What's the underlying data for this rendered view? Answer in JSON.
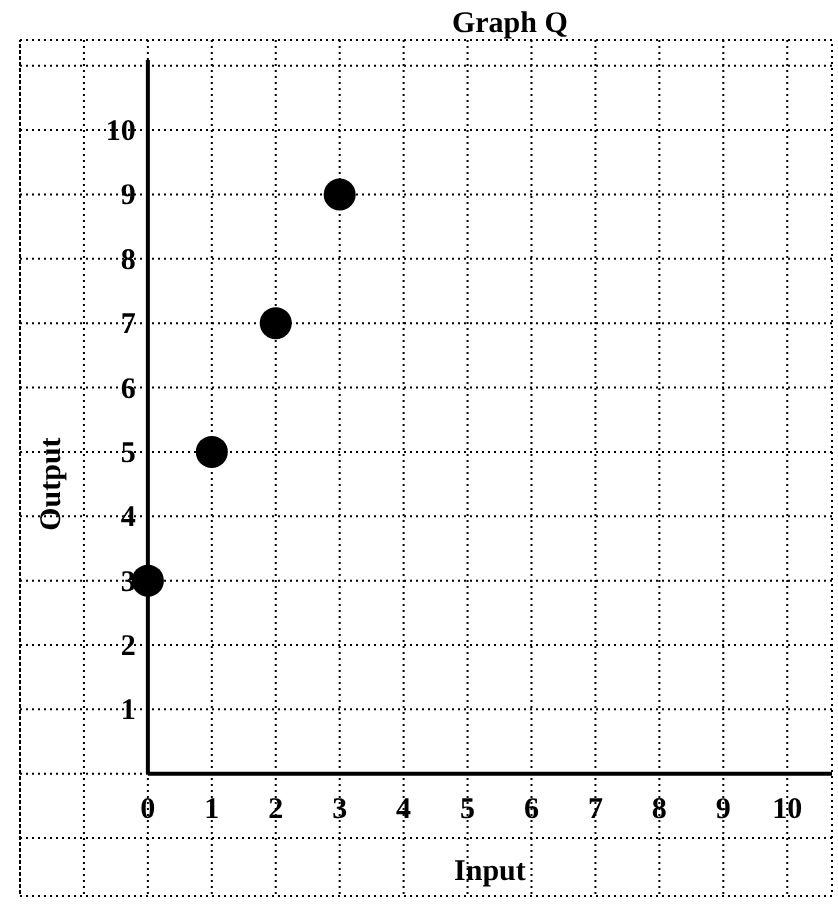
{
  "chart_data": {
    "type": "scatter",
    "title": "Graph Q",
    "xlabel": "Input",
    "ylabel": "Output",
    "x": [
      0,
      1,
      2,
      3
    ],
    "series": [
      {
        "color": "#000000",
        "values": [
          3,
          5,
          7,
          9
        ]
      }
    ],
    "xlim": [
      -2,
      10.7
    ],
    "ylim": [
      -1.9,
      11.4
    ],
    "xticks": [
      {
        "value": -2,
        "label": null
      },
      {
        "value": -1,
        "label": null
      },
      0,
      1,
      2,
      3,
      4,
      5,
      6,
      7,
      8,
      9,
      10
    ],
    "yticks": [
      {
        "value": -1,
        "label": null
      },
      {
        "value": 0,
        "label": null
      },
      1,
      2,
      3,
      4,
      5,
      6,
      7,
      8,
      9,
      10,
      {
        "value": 11,
        "label": null
      }
    ],
    "grid": true,
    "marker": "circle"
  }
}
